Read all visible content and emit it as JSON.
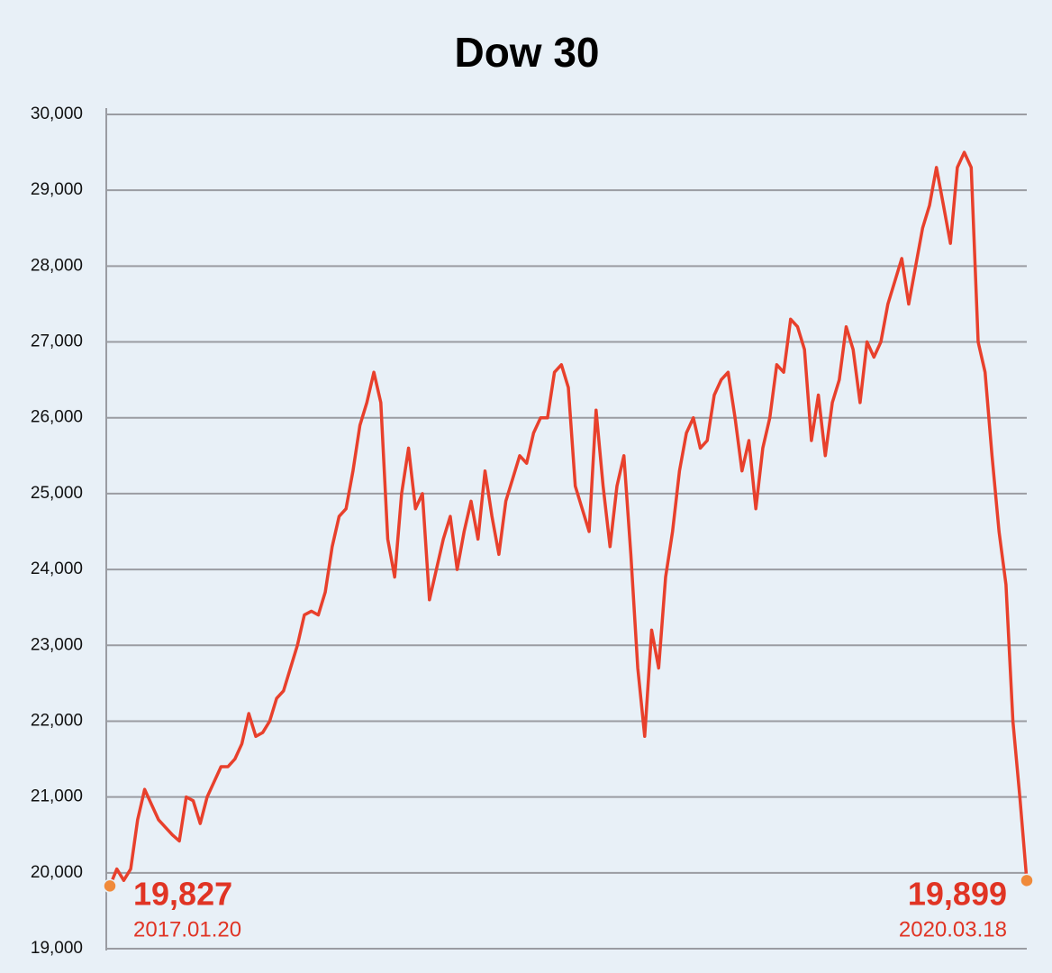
{
  "chart_data": {
    "type": "line",
    "title": "Dow 30",
    "color": "#e8402c",
    "grid": true,
    "ylim": [
      19000,
      30000
    ],
    "yticks": [
      {
        "value": 19000,
        "label": "19,000"
      },
      {
        "value": 20000,
        "label": "20,000"
      },
      {
        "value": 21000,
        "label": "21,000"
      },
      {
        "value": 22000,
        "label": "22,000"
      },
      {
        "value": 23000,
        "label": "23,000"
      },
      {
        "value": 24000,
        "label": "24,000"
      },
      {
        "value": 25000,
        "label": "25,000"
      },
      {
        "value": 26000,
        "label": "26,000"
      },
      {
        "value": 27000,
        "label": "27,000"
      },
      {
        "value": 28000,
        "label": "28,000"
      },
      {
        "value": 29000,
        "label": "29,000"
      },
      {
        "value": 30000,
        "label": "30,000"
      }
    ],
    "values": [
      19827,
      20050,
      19900,
      20050,
      20700,
      21100,
      20900,
      20700,
      20600,
      20500,
      20420,
      21000,
      20950,
      20650,
      21000,
      21200,
      21400,
      21400,
      21500,
      21700,
      22100,
      21800,
      21850,
      22000,
      22300,
      22400,
      22700,
      23000,
      23400,
      23450,
      23400,
      23700,
      24300,
      24700,
      24800,
      25300,
      25900,
      26200,
      26600,
      26200,
      24400,
      23900,
      25000,
      25600,
      24800,
      25000,
      23600,
      24000,
      24400,
      24700,
      24000,
      24500,
      24900,
      24400,
      25300,
      24700,
      24200,
      24900,
      25200,
      25500,
      25400,
      25800,
      26000,
      26000,
      26600,
      26700,
      26400,
      25100,
      24800,
      24500,
      26100,
      25100,
      24300,
      25100,
      25500,
      24200,
      22700,
      21800,
      23200,
      22700,
      23900,
      24500,
      25300,
      25800,
      26000,
      25600,
      25700,
      26300,
      26500,
      26600,
      26000,
      25300,
      25700,
      24800,
      25600,
      26000,
      26700,
      26600,
      27300,
      27200,
      26900,
      25700,
      26300,
      25500,
      26200,
      26500,
      27200,
      26900,
      26200,
      27000,
      26800,
      27000,
      27500,
      27800,
      28100,
      27500,
      28000,
      28500,
      28800,
      29300,
      28800,
      28300,
      29300,
      29500,
      29300,
      27000,
      26600,
      25500,
      24500,
      23800,
      22000,
      21000,
      19899
    ],
    "annotations": [
      {
        "value": {
          "value": 19827,
          "label": "19,827"
        },
        "date": "2017.01.20"
      },
      {
        "value": {
          "value": 19899,
          "label": "19,899"
        },
        "date": "2020.03.18"
      }
    ]
  }
}
